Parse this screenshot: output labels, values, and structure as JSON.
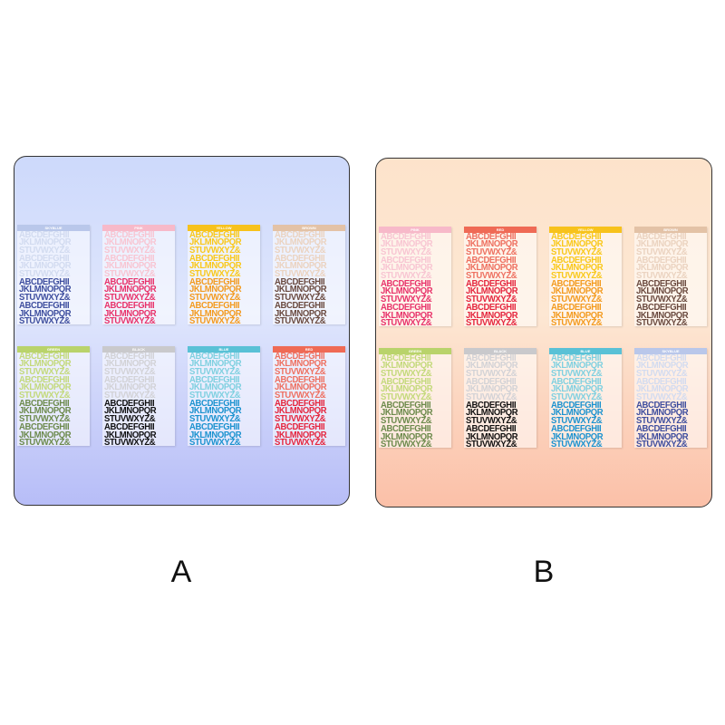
{
  "rows": [
    "ABCDEFGHII",
    "JKLMNOPQR",
    "STUVWXYZ&"
  ],
  "panels": [
    {
      "label": "A",
      "sheets": [
        {
          "name": "SKYBLUE",
          "header": "#b9c7ea",
          "light": "#d2dbf0",
          "dark": "#3e4e9e"
        },
        {
          "name": "PINK",
          "header": "#f7b9c9",
          "light": "#f8c5d2",
          "dark": "#e8326a"
        },
        {
          "name": "YELLOW",
          "header": "#f7c21c",
          "light": "#f9c81a",
          "dark": "#f39a1e"
        },
        {
          "name": "BROWN",
          "header": "#e3c2a6",
          "light": "#ebd3c0",
          "dark": "#6a4a3f"
        },
        {
          "name": "GREEN",
          "header": "#b9d36b",
          "light": "#c3d97a",
          "dark": "#6c8a4c"
        },
        {
          "name": "BLACK",
          "header": "#c9c9cc",
          "light": "#d2d2d6",
          "dark": "#111111"
        },
        {
          "name": "BLUE",
          "header": "#59c1d6",
          "light": "#7fd0e0",
          "dark": "#1b92cf"
        },
        {
          "name": "RED",
          "header": "#ef6a55",
          "light": "#ee7060",
          "dark": "#e5263e"
        }
      ]
    },
    {
      "label": "B",
      "sheets": [
        {
          "name": "PINK",
          "header": "#f7b9c9",
          "light": "#f8c5d2",
          "dark": "#e8326a"
        },
        {
          "name": "RED",
          "header": "#ef6a55",
          "light": "#ee7060",
          "dark": "#e5263e"
        },
        {
          "name": "YELLOW",
          "header": "#f7c21c",
          "light": "#f9c81a",
          "dark": "#f39a1e"
        },
        {
          "name": "BROWN",
          "header": "#e3c2a6",
          "light": "#ebd3c0",
          "dark": "#6a4a3f"
        },
        {
          "name": "GREEN",
          "header": "#b9d36b",
          "light": "#c3d97a",
          "dark": "#6c8a4c"
        },
        {
          "name": "BLACK",
          "header": "#c9c9cc",
          "light": "#d2d2d6",
          "dark": "#111111"
        },
        {
          "name": "BLUE",
          "header": "#59c1d6",
          "light": "#7fd0e0",
          "dark": "#1b92cf"
        },
        {
          "name": "SKYBLUE",
          "header": "#b9c7ea",
          "light": "#d2dbf0",
          "dark": "#3e4e9e"
        }
      ]
    }
  ]
}
